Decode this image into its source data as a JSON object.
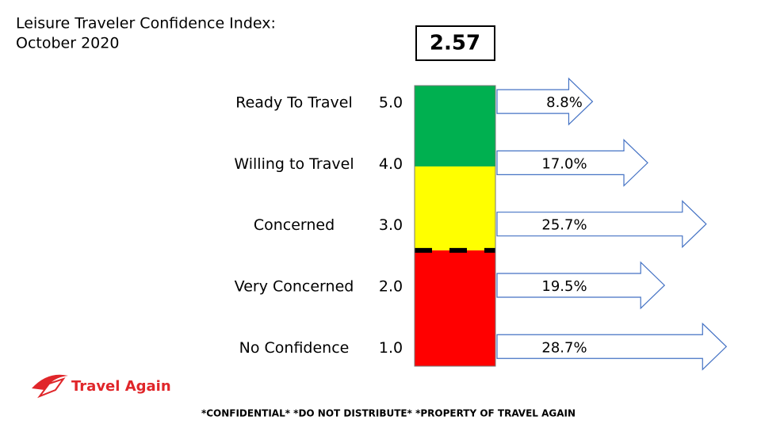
{
  "chart_data": {
    "type": "arrow-bar",
    "title": "Leisure Traveler Confidence Index:",
    "subtitle": "October 2020",
    "index_value": 2.57,
    "categories": [
      "Ready To Travel",
      "Willing to Travel",
      "Concerned",
      "Very Concerned",
      "No Confidence"
    ],
    "levels": [
      {
        "value": 5,
        "label": "5.0"
      },
      {
        "value": 4,
        "label": "4.0"
      },
      {
        "value": 3,
        "label": "3.0"
      },
      {
        "value": 2,
        "label": "2.0"
      },
      {
        "value": 1,
        "label": "1.0"
      }
    ],
    "values": [
      8.8,
      17.0,
      25.7,
      19.5,
      28.7
    ],
    "value_labels": [
      "8.8%",
      "17.0%",
      "25.7%",
      "19.5%",
      "28.7%"
    ],
    "ylim": [
      0.68,
      5.26
    ],
    "xlim": [
      -5.4,
      33.5
    ],
    "gauge_colors": {
      "low": "#ff0000",
      "mid": "#ffff00",
      "high": "#00b050"
    },
    "high_from": 3.94,
    "arrow_color": "#4472c4",
    "brand": "Travel Again",
    "footer": "*CONFIDENTIAL*  *DO NOT DISTRIBUTE* *PROPERTY OF TRAVEL AGAIN"
  }
}
